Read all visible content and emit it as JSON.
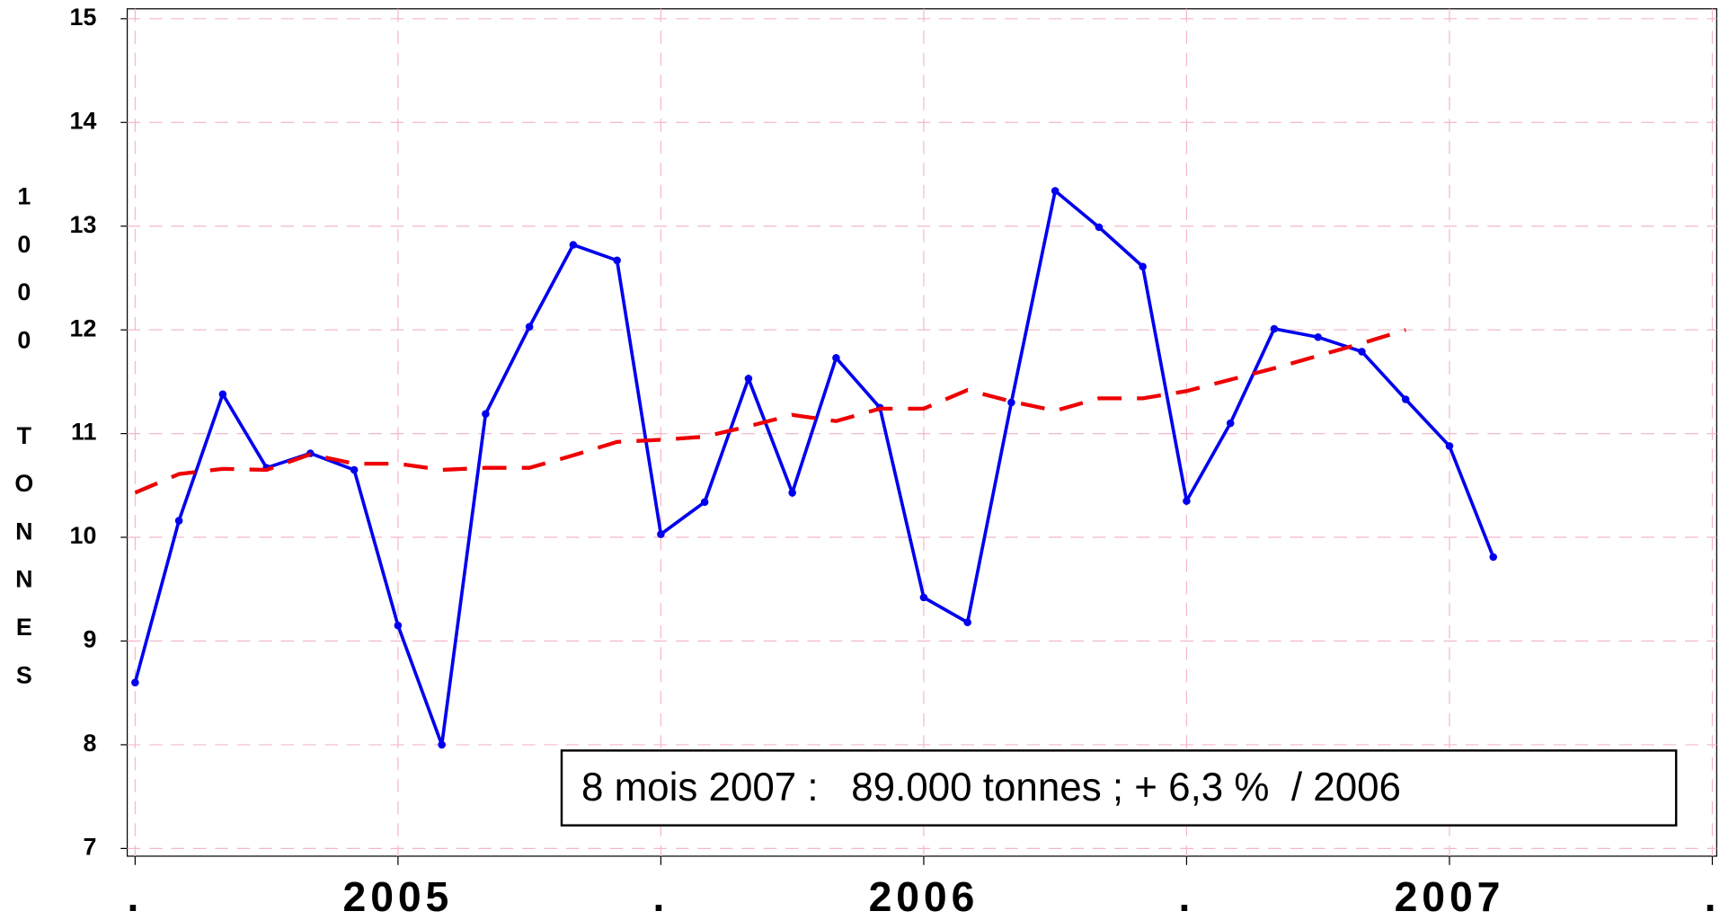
{
  "chart_data": {
    "type": "line",
    "y_label": "1000 TONNES",
    "annotation": "8 mois 2007 :   89.000 tonnes ; + 6,3 %  / 2006",
    "x": [
      0,
      1,
      2,
      3,
      4,
      5,
      6,
      7,
      8,
      9,
      10,
      11,
      12,
      13,
      14,
      15,
      16,
      17,
      18,
      19,
      20,
      21,
      22,
      23,
      24,
      25,
      26,
      27,
      28,
      29,
      30,
      31
    ],
    "series": [
      {
        "color": "#0000ee",
        "style": "solid",
        "values": [
          8.6,
          10.16,
          11.38,
          10.67,
          10.81,
          10.65,
          9.15,
          8.0,
          11.19,
          12.03,
          12.82,
          12.67,
          10.03,
          10.34,
          11.53,
          10.43,
          11.73,
          11.25,
          9.42,
          9.18,
          11.3,
          13.34,
          12.99,
          12.61,
          10.35,
          11.1,
          12.01,
          11.93,
          11.79,
          11.33,
          10.88,
          9.81
        ]
      },
      {
        "color": "#ee0000",
        "style": "dashed",
        "values": [
          10.43,
          10.61,
          10.66,
          10.65,
          10.8,
          10.71,
          10.71,
          10.65,
          10.67,
          10.67,
          10.79,
          10.92,
          10.94,
          10.97,
          11.07,
          11.18,
          11.12,
          11.24,
          11.24,
          11.42,
          11.31,
          11.22,
          11.34,
          11.34,
          11.41,
          11.52,
          11.63,
          11.75,
          11.87,
          12.0,
          null,
          null
        ]
      }
    ],
    "xlim": [
      -0.18,
      36.1
    ],
    "xticks": [
      {
        "value": 0,
        "label": "."
      },
      {
        "value": 6,
        "label": "2005"
      },
      {
        "value": 12,
        "label": "."
      },
      {
        "value": 18,
        "label": "2006"
      },
      {
        "value": 24,
        "label": "."
      },
      {
        "value": 30,
        "label": "2007"
      },
      {
        "value": 36,
        "label": "."
      }
    ],
    "ylim": [
      7,
      15
    ],
    "yticks": [
      7,
      8,
      9,
      10,
      11,
      12,
      13,
      14,
      15
    ],
    "grid": true,
    "grid_color": "#f4b8c8"
  }
}
